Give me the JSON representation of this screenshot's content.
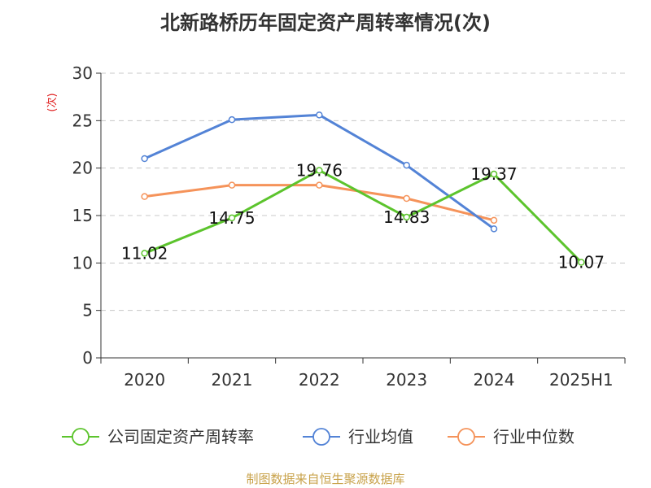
{
  "title": "北新路桥历年固定资产周转率情况(次)",
  "source": "制图数据来自恒生聚源数据库",
  "chart_data": {
    "type": "line",
    "title": "北新路桥历年固定资产周转率情况(次)",
    "ylabel": "(次)",
    "categories": [
      "2020",
      "2021",
      "2022",
      "2023",
      "2024",
      "2025H1"
    ],
    "ylim": [
      0,
      30
    ],
    "yticks": [
      0,
      5,
      10,
      15,
      20,
      25,
      30
    ],
    "grid": true,
    "legend_position": "bottom",
    "series": [
      {
        "name": "公司固定资产周转率",
        "color": "#5cc42d",
        "values": [
          11.02,
          14.75,
          19.76,
          14.83,
          19.37,
          10.07
        ],
        "labels": true
      },
      {
        "name": "行业均值",
        "color": "#5383d6",
        "values": [
          21.0,
          25.1,
          25.6,
          20.3,
          13.6,
          null
        ],
        "labels": false
      },
      {
        "name": "行业中位数",
        "color": "#f5935a",
        "values": [
          17.0,
          18.2,
          18.2,
          16.8,
          14.5,
          null
        ],
        "labels": false
      }
    ]
  }
}
